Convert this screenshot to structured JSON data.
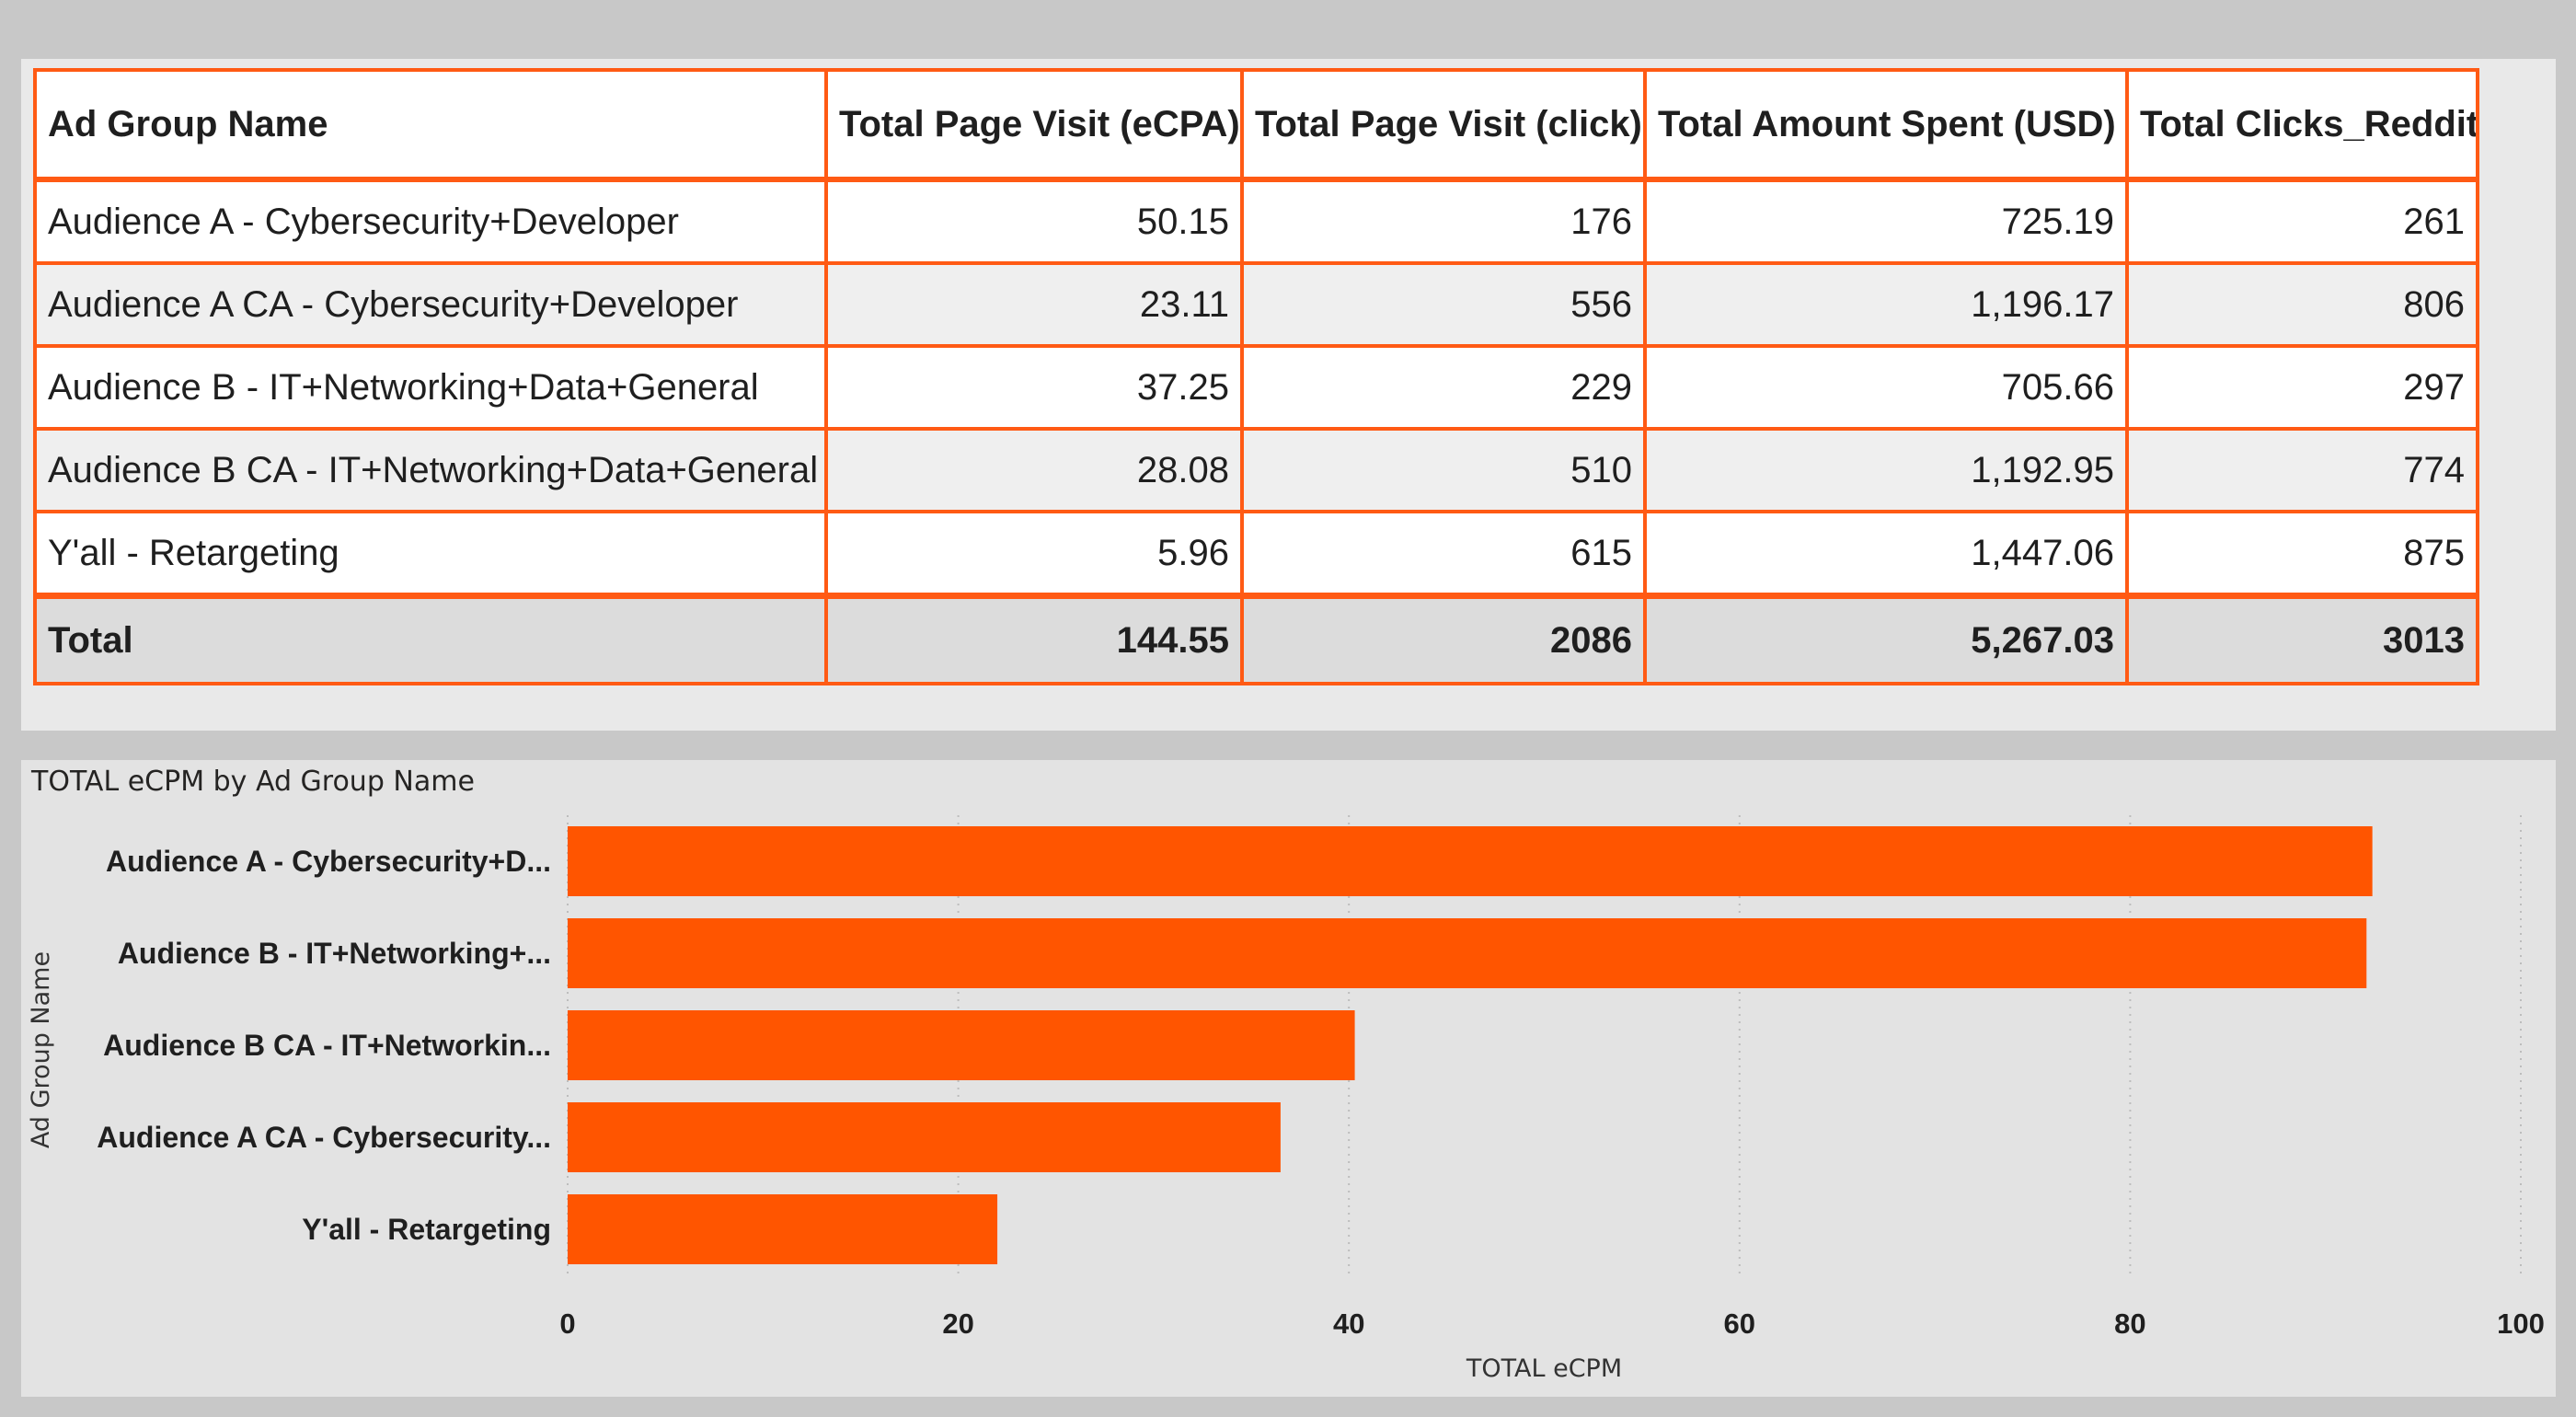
{
  "table": {
    "columns": [
      "Ad Group Name",
      "Total Page Visit (eCPA)",
      "Total Page Visit (click)",
      "Total Amount Spent (USD)",
      "Total Clicks_Reddit"
    ],
    "rows": [
      [
        "Audience A - Cybersecurity+Developer",
        "50.15",
        "176",
        "725.19",
        "261"
      ],
      [
        "Audience A CA - Cybersecurity+Developer",
        "23.11",
        "556",
        "1,196.17",
        "806"
      ],
      [
        "Audience B - IT+Networking+Data+General",
        "37.25",
        "229",
        "705.66",
        "297"
      ],
      [
        "Audience B CA - IT+Networking+Data+General",
        "28.08",
        "510",
        "1,192.95",
        "774"
      ],
      [
        "Y'all - Retargeting",
        "5.96",
        "615",
        "1,447.06",
        "875"
      ]
    ],
    "total": [
      "Total",
      "144.55",
      "2086",
      "5,267.03",
      "3013"
    ]
  },
  "chart_data": {
    "type": "bar",
    "orientation": "horizontal",
    "title": "TOTAL eCPM by Ad Group Name",
    "xlabel": "TOTAL eCPM",
    "ylabel": "Ad Group Name",
    "categories": [
      "Audience A - Cybersecurity+D...",
      "Audience B - IT+Networking+...",
      "Audience B CA - IT+Networkin...",
      "Audience A CA - Cybersecurity...",
      "Y'all - Retargeting"
    ],
    "values": [
      92.4,
      92.1,
      40.3,
      36.5,
      22.0
    ],
    "xlim": [
      0,
      100
    ],
    "xticks": [
      0,
      20,
      40,
      60,
      80,
      100
    ],
    "grid": true,
    "legend": "none",
    "bar_color": "#ff5500"
  }
}
